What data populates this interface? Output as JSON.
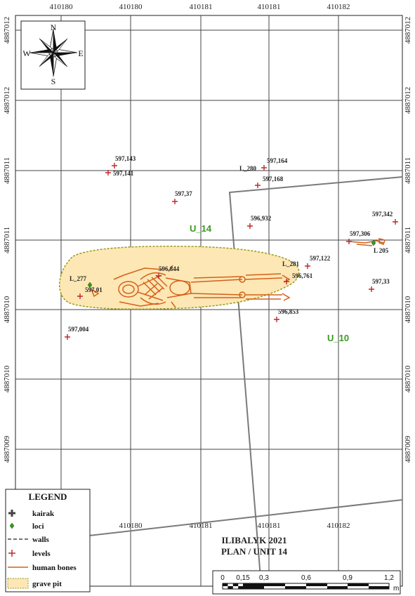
{
  "title": {
    "line1": "ILIBALYK 2021",
    "line2": "PLAN / UNIT 14"
  },
  "axes": {
    "x_ticks": [
      "410180",
      "410180",
      "410181",
      "410181",
      "410182"
    ],
    "y_ticks": [
      "4887012",
      "4887012",
      "4887011",
      "4887011",
      "4887010",
      "4887010",
      "4887009"
    ]
  },
  "compass": {
    "n": "N",
    "s": "S",
    "e": "E",
    "w": "W"
  },
  "units": {
    "u14": "U_14",
    "u10": "U_10"
  },
  "loci": {
    "l277": "L_277",
    "l280": "L_280",
    "l281": "L_281",
    "l205": "L 205"
  },
  "levels": [
    {
      "label": "597,143"
    },
    {
      "label": "597,141"
    },
    {
      "label": "597,37"
    },
    {
      "label": "597,164"
    },
    {
      "label": "597,168"
    },
    {
      "label": "596,932"
    },
    {
      "label": "597,342"
    },
    {
      "label": "597,306"
    },
    {
      "label": "597,122"
    },
    {
      "label": "596,761"
    },
    {
      "label": "596,844"
    },
    {
      "label": "597,01"
    },
    {
      "label": "597,33"
    },
    {
      "label": "596,853"
    },
    {
      "label": "597,004"
    }
  ],
  "legend": {
    "title": "LEGEND",
    "items": [
      {
        "label": "kairak"
      },
      {
        "label": "loci"
      },
      {
        "label": "walls"
      },
      {
        "label": "levels"
      },
      {
        "label": "human bones"
      },
      {
        "label": "grave pit"
      }
    ]
  },
  "scale_bar": {
    "labels": [
      "0",
      "0,15",
      "0,3",
      "0,6",
      "0,9",
      "1,2"
    ],
    "unit": "m"
  },
  "colors": {
    "levels": "#c0262c",
    "bones": "#d4601a",
    "grave_pit_fill": "#fde7b4",
    "grave_pit_border": "#9a9a1a",
    "unit_label": "#3a9a20",
    "walls": "#7a7a7a",
    "grid": "#444444"
  }
}
